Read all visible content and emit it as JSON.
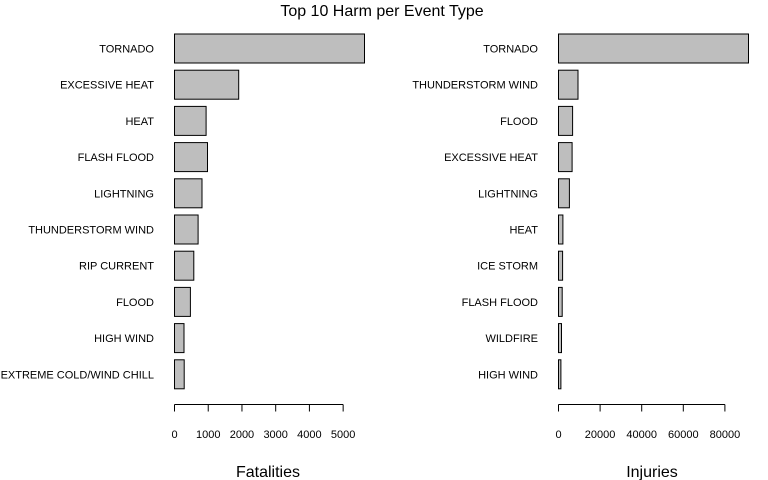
{
  "title": "Top 10 Harm per Event Type",
  "colors": {
    "bar_fill": "#bebebe",
    "bar_stroke": "#000000",
    "background": "#ffffff"
  },
  "chart_data": [
    {
      "type": "bar",
      "orientation": "horizontal",
      "xlabel": "Fatalities",
      "categories": [
        "TORNADO",
        "EXCESSIVE HEAT",
        "HEAT",
        "FLASH FLOOD",
        "LIGHTNING",
        "THUNDERSTORM WIND",
        "RIP CURRENT",
        "FLOOD",
        "HIGH WIND",
        "EXTREME COLD/WIND CHILL"
      ],
      "values": [
        5633,
        1903,
        937,
        978,
        816,
        701,
        572,
        470,
        283,
        287
      ],
      "xlim": [
        0,
        5633
      ],
      "ticks": [
        0,
        1000,
        2000,
        3000,
        4000,
        5000
      ],
      "grid": false
    },
    {
      "type": "bar",
      "orientation": "horizontal",
      "xlabel": "Injuries",
      "categories": [
        "TORNADO",
        "THUNDERSTORM WIND",
        "FLOOD",
        "EXCESSIVE HEAT",
        "LIGHTNING",
        "HEAT",
        "ICE STORM",
        "FLASH FLOOD",
        "WILDFIRE",
        "HIGH WIND"
      ],
      "values": [
        91346,
        9353,
        6791,
        6525,
        5230,
        2100,
        1975,
        1777,
        1456,
        1137
      ],
      "xlim": [
        0,
        91346
      ],
      "ticks": [
        0,
        20000,
        40000,
        60000,
        80000
      ],
      "grid": false
    }
  ]
}
